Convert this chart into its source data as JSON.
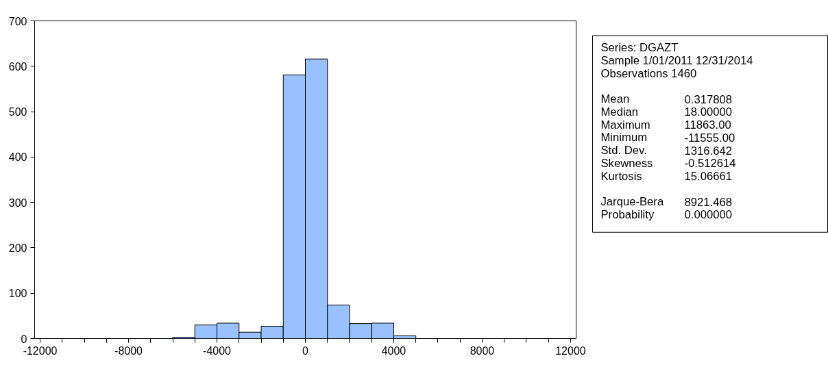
{
  "chart_data": {
    "type": "histogram",
    "bins": [
      -6000,
      -5000,
      -4000,
      -3000,
      -2000,
      -1000,
      0,
      1000,
      2000,
      3000,
      4000,
      5000
    ],
    "values": [
      3,
      30,
      34,
      14,
      27,
      581,
      616,
      74,
      33,
      34,
      6
    ],
    "color": "#99c0ff",
    "xlim": [
      -12250,
      12250
    ],
    "xticks": [
      -12000,
      {
        "value": -11000,
        "label": null
      },
      {
        "value": -10000,
        "label": null
      },
      {
        "value": -9000,
        "label": null
      },
      -8000,
      {
        "value": -7000,
        "label": null
      },
      {
        "value": -6000,
        "label": null
      },
      {
        "value": -5000,
        "label": null
      },
      -4000,
      {
        "value": -3000,
        "label": null
      },
      {
        "value": -2000,
        "label": null
      },
      {
        "value": -1000,
        "label": null
      },
      0,
      {
        "value": 1000,
        "label": null
      },
      {
        "value": 2000,
        "label": null
      },
      {
        "value": 3000,
        "label": null
      },
      4000,
      {
        "value": 5000,
        "label": null
      },
      {
        "value": 6000,
        "label": null
      },
      {
        "value": 7000,
        "label": null
      },
      8000,
      {
        "value": 9000,
        "label": null
      },
      {
        "value": 10000,
        "label": null
      },
      {
        "value": 11000,
        "label": null
      },
      12000
    ],
    "ylim": [
      0,
      700
    ],
    "yticks": [
      0,
      100,
      200,
      300,
      400,
      500,
      600,
      700
    ],
    "grid": false,
    "annotations": [
      "Series: DGAZT",
      "Sample 1/01/2011 12/31/2014",
      "Observations 1460",
      "Mean\t0.317808",
      "Median\t18.00000",
      "Maximum\t11863.00",
      "Minimum\t-11555.00",
      "Std. Dev.\t1316.642",
      "Skewness\t-0.512614",
      "Kurtosis\t15.06661",
      "Jarque-Bera\t8921.468",
      "Probability\t0.000000"
    ]
  }
}
